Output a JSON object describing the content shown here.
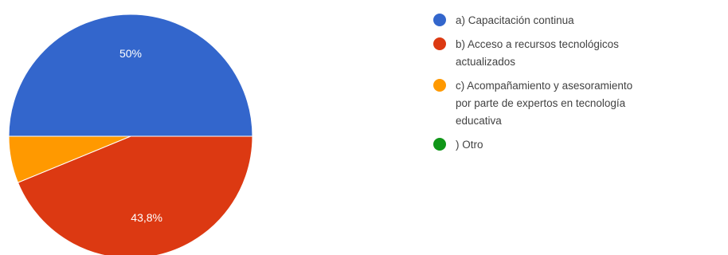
{
  "chart_data": {
    "type": "pie",
    "title": "",
    "legend_position": "right",
    "slices": [
      {
        "label": "a) Capacitación continua",
        "value": 50,
        "display": "50%",
        "color": "#3366cc"
      },
      {
        "label": "b) Acceso a recursos tecnológicos actualizados",
        "value": 43.8,
        "display": "43,8%",
        "color": "#dc3912"
      },
      {
        "label": "c) Acompañamiento y asesoramiento por parte de expertos en tecnología educativa",
        "value": 6.2,
        "display": "",
        "color": "#ff9900"
      },
      {
        "label": ") Otro",
        "value": 0,
        "display": "",
        "color": "#109618"
      }
    ],
    "legend": [
      {
        "lines": [
          "a) Capacitación continua"
        ],
        "color": "#3366cc"
      },
      {
        "lines": [
          "b) Acceso a recursos tecnológicos",
          "actualizados"
        ],
        "color": "#dc3912"
      },
      {
        "lines": [
          "c) Acompañamiento y asesoramiento",
          "por parte de expertos en tecnología",
          "educativa"
        ],
        "color": "#ff9900"
      },
      {
        "lines": [
          ") Otro"
        ],
        "color": "#109618"
      }
    ]
  }
}
